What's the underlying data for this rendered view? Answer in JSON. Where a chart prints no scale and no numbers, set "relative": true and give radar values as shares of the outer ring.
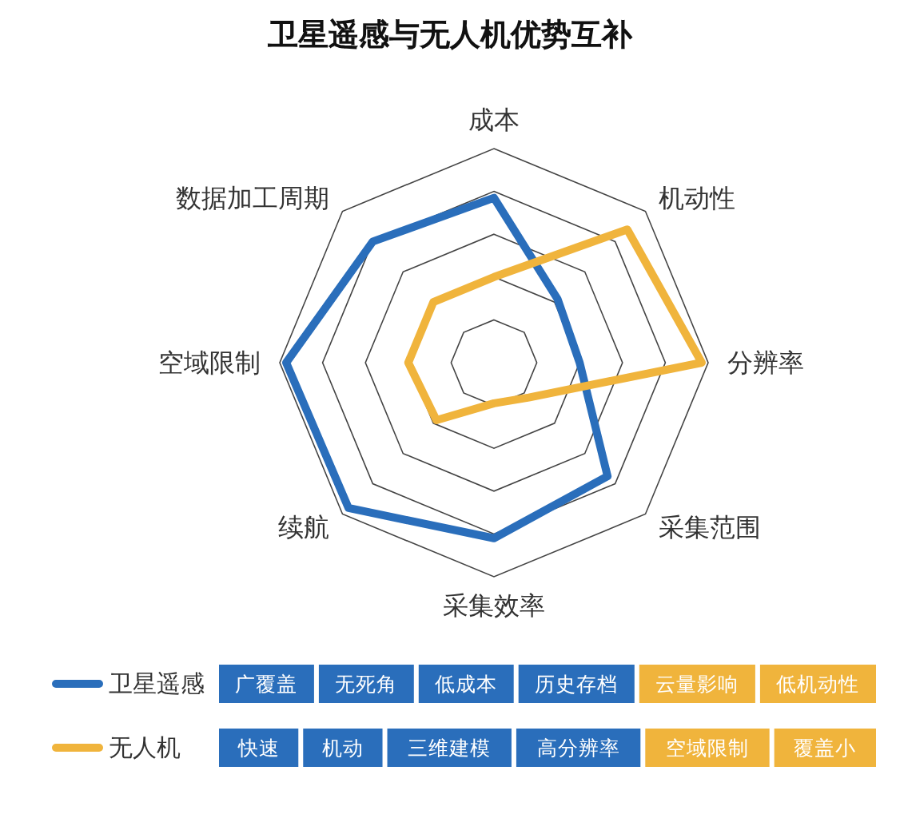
{
  "chart_data": {
    "type": "radar",
    "title": "卫星遥感与无人机优势互补",
    "relative": true,
    "grid": true,
    "legend": "bottom",
    "marker": "none",
    "categories": [
      "成本",
      "机动性",
      "分辨率",
      "采集范围",
      "采集效率",
      "续航",
      "空域限制",
      "数据加工周期"
    ],
    "series": [
      {
        "name": "卫星遥感",
        "color": "#2a6ebb",
        "values": [
          0.77,
          0.42,
          0.4,
          0.75,
          0.82,
          0.96,
          0.97,
          0.8
        ]
      },
      {
        "name": "无人机",
        "color": "#f0b43c",
        "values": [
          0.4,
          0.88,
          0.97,
          0.23,
          0.19,
          0.38,
          0.4,
          0.4
        ]
      }
    ],
    "annotations": [
      "广覆盖",
      "无死角",
      "低成本",
      "历史存档",
      "云量影响",
      "低机动性",
      "快速",
      "机动",
      "三维建模",
      "高分辨率",
      "空域限制",
      "覆盖小"
    ]
  }
}
